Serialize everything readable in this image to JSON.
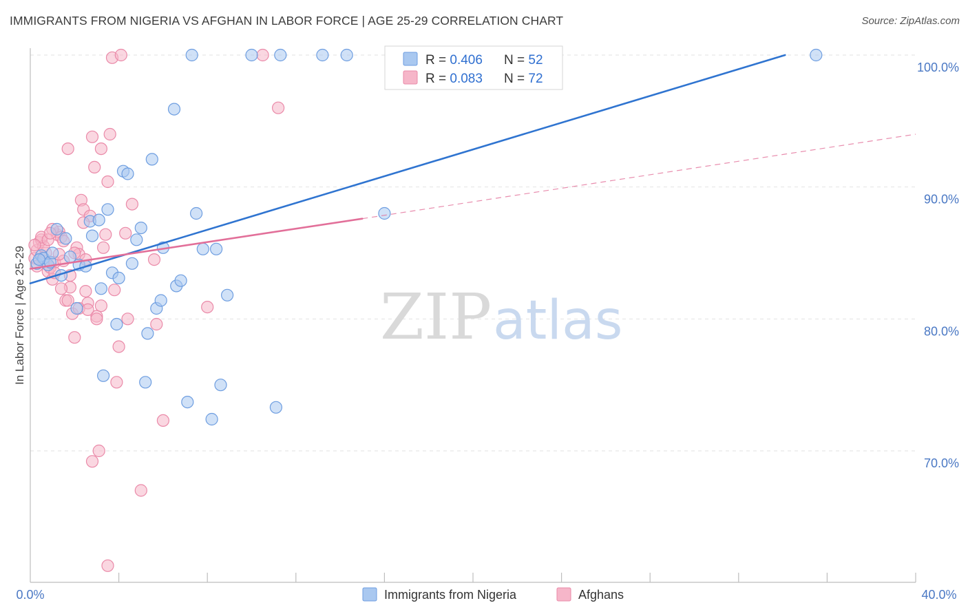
{
  "header": {
    "title": "IMMIGRANTS FROM NIGERIA VS AFGHAN IN LABOR FORCE | AGE 25-29 CORRELATION CHART",
    "source": "Source: ZipAtlas.com"
  },
  "watermark": {
    "zip": "ZIP",
    "atlas": "atlas"
  },
  "colors": {
    "blue_fill": "#a9c8f0",
    "blue_stroke": "#6d9de0",
    "blue_line": "#2f74d0",
    "pink_fill": "#f6b6c9",
    "pink_stroke": "#ea89a8",
    "pink_line": "#e26f99",
    "grid": "#e2e2e2",
    "axis_text": "#4a78c4"
  },
  "legend": {
    "rows": [
      {
        "r_label": "R = ",
        "r_value": "0.406",
        "n_label": "N = ",
        "n_value": "52"
      },
      {
        "r_label": "R = ",
        "r_value": "0.083",
        "n_label": "N = ",
        "n_value": "72"
      }
    ]
  },
  "chart_data": {
    "type": "scatter",
    "title": "IMMIGRANTS FROM NIGERIA VS AFGHAN IN LABOR FORCE | AGE 25-29 CORRELATION CHART",
    "xlabel": "",
    "ylabel": "In Labor Force | Age 25-29",
    "xlim": [
      0,
      40
    ],
    "ylim": [
      60.5,
      101
    ],
    "x_tick_labels": [
      "0.0%",
      "40.0%"
    ],
    "y_ticks": [
      70,
      80,
      90,
      100
    ],
    "y_tick_labels": [
      "70.0%",
      "80.0%",
      "90.0%",
      "100.0%"
    ],
    "legend_position": "bottom-center",
    "series": [
      {
        "name": "Immigrants from Nigeria",
        "color": "blue",
        "r": 0.406,
        "n": 52,
        "trend": {
          "x": [
            0,
            34.1
          ],
          "y": [
            82.7,
            100.0
          ],
          "dashed_extension": false
        },
        "points": [
          [
            0.3,
            84.2
          ],
          [
            0.5,
            84.8
          ],
          [
            0.6,
            84.6
          ],
          [
            0.8,
            84.1
          ],
          [
            0.9,
            84.3
          ],
          [
            1.0,
            85.0
          ],
          [
            1.2,
            86.8
          ],
          [
            1.4,
            83.3
          ],
          [
            1.6,
            86.1
          ],
          [
            1.8,
            84.7
          ],
          [
            2.1,
            80.8
          ],
          [
            2.2,
            84.1
          ],
          [
            2.5,
            84.0
          ],
          [
            2.7,
            87.4
          ],
          [
            2.8,
            86.3
          ],
          [
            3.1,
            87.5
          ],
          [
            3.2,
            82.3
          ],
          [
            3.3,
            75.7
          ],
          [
            3.5,
            88.3
          ],
          [
            3.7,
            83.5
          ],
          [
            3.9,
            79.6
          ],
          [
            4.0,
            83.1
          ],
          [
            4.2,
            91.2
          ],
          [
            4.4,
            91.0
          ],
          [
            4.6,
            84.2
          ],
          [
            4.8,
            86.0
          ],
          [
            5.0,
            86.9
          ],
          [
            5.2,
            75.2
          ],
          [
            5.3,
            78.9
          ],
          [
            5.5,
            92.1
          ],
          [
            5.7,
            80.8
          ],
          [
            5.9,
            81.4
          ],
          [
            6.0,
            85.4
          ],
          [
            6.5,
            95.9
          ],
          [
            6.6,
            82.5
          ],
          [
            6.8,
            82.9
          ],
          [
            7.1,
            73.7
          ],
          [
            7.3,
            100.0
          ],
          [
            7.5,
            88.0
          ],
          [
            7.8,
            85.3
          ],
          [
            8.2,
            72.4
          ],
          [
            8.4,
            85.3
          ],
          [
            8.6,
            75.0
          ],
          [
            8.9,
            81.8
          ],
          [
            10.0,
            100.0
          ],
          [
            11.1,
            73.3
          ],
          [
            11.3,
            100.0
          ],
          [
            13.2,
            100.0
          ],
          [
            14.3,
            100.0
          ],
          [
            16.0,
            88.0
          ],
          [
            35.5,
            100.0
          ],
          [
            0.4,
            84.5
          ]
        ]
      },
      {
        "name": "Afghans",
        "color": "pink",
        "r": 0.083,
        "n": 72,
        "trend": {
          "x": [
            0,
            15.0
          ],
          "y": [
            83.8,
            87.6
          ],
          "dashed_extension": true,
          "dashed_to": {
            "x": 40,
            "y": 94.0
          }
        },
        "points": [
          [
            0.2,
            84.6
          ],
          [
            0.3,
            85.2
          ],
          [
            0.4,
            85.8
          ],
          [
            0.5,
            86.0
          ],
          [
            0.6,
            84.4
          ],
          [
            0.7,
            85.0
          ],
          [
            0.8,
            83.6
          ],
          [
            0.9,
            83.9
          ],
          [
            1.0,
            83.0
          ],
          [
            1.1,
            84.3
          ],
          [
            1.2,
            86.4
          ],
          [
            1.3,
            86.6
          ],
          [
            1.4,
            86.2
          ],
          [
            1.5,
            84.4
          ],
          [
            1.6,
            81.4
          ],
          [
            1.7,
            81.4
          ],
          [
            1.8,
            82.4
          ],
          [
            1.9,
            80.4
          ],
          [
            2.0,
            78.6
          ],
          [
            2.1,
            85.4
          ],
          [
            2.2,
            84.9
          ],
          [
            2.3,
            89.0
          ],
          [
            2.4,
            88.3
          ],
          [
            2.5,
            82.1
          ],
          [
            2.6,
            81.2
          ],
          [
            2.7,
            87.8
          ],
          [
            2.8,
            93.8
          ],
          [
            2.9,
            91.5
          ],
          [
            3.0,
            80.2
          ],
          [
            3.1,
            70.0
          ],
          [
            3.2,
            92.9
          ],
          [
            3.3,
            85.4
          ],
          [
            3.4,
            86.4
          ],
          [
            3.5,
            90.4
          ],
          [
            3.6,
            94.0
          ],
          [
            3.7,
            99.8
          ],
          [
            3.8,
            82.2
          ],
          [
            3.9,
            75.2
          ],
          [
            4.0,
            77.9
          ],
          [
            4.1,
            100.0
          ],
          [
            4.3,
            86.5
          ],
          [
            4.4,
            80.0
          ],
          [
            4.6,
            88.7
          ],
          [
            5.0,
            67.0
          ],
          [
            5.6,
            84.5
          ],
          [
            5.7,
            79.6
          ],
          [
            6.0,
            72.3
          ],
          [
            8.0,
            80.9
          ],
          [
            10.5,
            100.0
          ],
          [
            11.2,
            96.0
          ],
          [
            1.7,
            92.9
          ],
          [
            2.5,
            84.5
          ],
          [
            3.5,
            61.3
          ],
          [
            2.8,
            69.2
          ],
          [
            0.3,
            84.0
          ],
          [
            0.6,
            85.5
          ],
          [
            1.0,
            86.8
          ],
          [
            1.3,
            84.9
          ],
          [
            1.8,
            83.3
          ],
          [
            2.2,
            80.8
          ],
          [
            2.6,
            80.7
          ],
          [
            3.0,
            80.0
          ],
          [
            0.5,
            86.2
          ],
          [
            0.8,
            86.0
          ],
          [
            1.1,
            83.5
          ],
          [
            1.5,
            85.9
          ],
          [
            2.0,
            85.0
          ],
          [
            2.4,
            87.3
          ],
          [
            0.9,
            86.5
          ],
          [
            1.4,
            82.3
          ],
          [
            3.2,
            81.0
          ],
          [
            0.2,
            85.6
          ]
        ]
      }
    ]
  }
}
